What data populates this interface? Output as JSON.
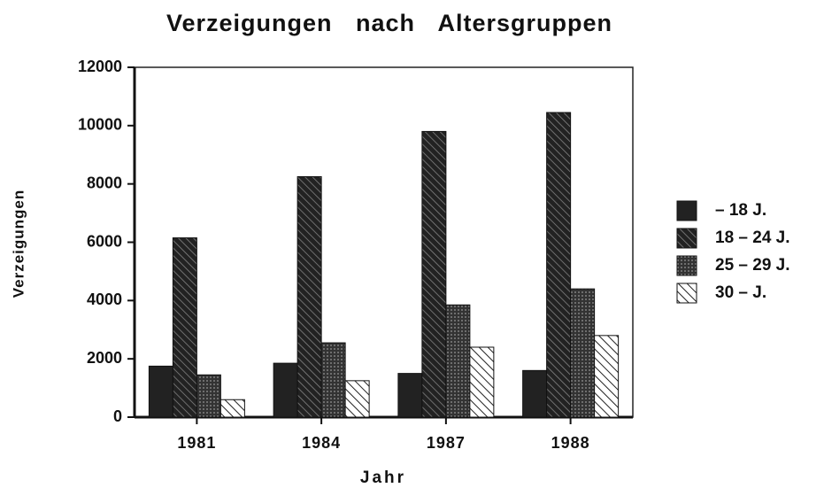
{
  "chart_data": {
    "type": "bar",
    "title": "Verzeigungen nach Altersgruppen",
    "x_label": "Jahr",
    "y_label": "Verzeigungen",
    "categories": [
      "1981",
      "1984",
      "1987",
      "1988"
    ],
    "series": [
      {
        "name": "– 18 J.",
        "color": "#222222",
        "pattern": "solid",
        "values": [
          1750,
          1850,
          1500,
          1600
        ]
      },
      {
        "name": "18 – 24 J.",
        "color": "#222222",
        "pattern": "dense-hatch",
        "values": [
          6150,
          8250,
          9800,
          10450
        ]
      },
      {
        "name": "25 – 29 J.",
        "color": "#333333",
        "pattern": "dots",
        "values": [
          1450,
          2550,
          3850,
          4400
        ]
      },
      {
        "name": "30 – J.",
        "color": "#222222",
        "pattern": "hatch",
        "values": [
          600,
          1250,
          2400,
          2800
        ]
      }
    ],
    "ylim": [
      0,
      12000
    ],
    "yticks": [
      0,
      2000,
      4000,
      6000,
      8000,
      10000,
      12000
    ],
    "grid": false,
    "legend": "right"
  }
}
